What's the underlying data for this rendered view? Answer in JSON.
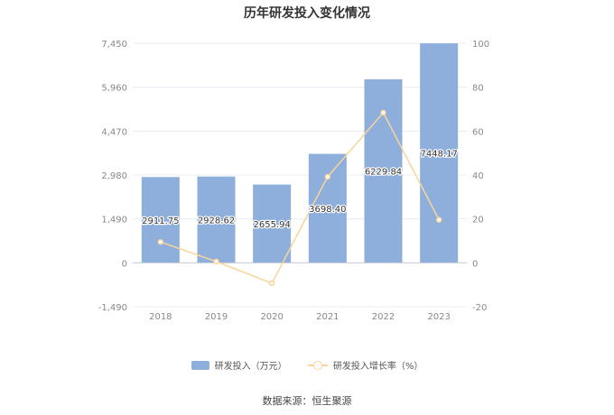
{
  "chart_data": {
    "type": "bar",
    "title": "历年研发投入变化情况",
    "categories": [
      "2018",
      "2019",
      "2020",
      "2021",
      "2022",
      "2023"
    ],
    "series": [
      {
        "name": "研发投入（万元）",
        "type": "bar",
        "axis": "left",
        "values": [
          2911.75,
          2928.62,
          2655.94,
          3698.4,
          6229.84,
          7448.17
        ],
        "labels": [
          "2911.75",
          "2928.62",
          "2655.94",
          "3698.40",
          "6229.84",
          "7448.17"
        ]
      },
      {
        "name": "研发投入增长率（%）",
        "type": "line",
        "axis": "right",
        "values": [
          9.5,
          0.6,
          -9.3,
          39.2,
          68.4,
          19.6
        ]
      }
    ],
    "y_left": {
      "ticks": [
        "7,450",
        "5,960",
        "4,470",
        "2,980",
        "1,490",
        "0",
        "-1,490"
      ],
      "range": [
        -1490,
        7450
      ]
    },
    "y_right": {
      "ticks": [
        "100",
        "80",
        "60",
        "40",
        "20",
        "0",
        "-20"
      ],
      "range": [
        -20,
        100
      ]
    },
    "grid": true,
    "legend_position": "bottom",
    "colors": {
      "bar": "#8eaedb",
      "line": "#f7d59c",
      "grid": "#e8ecf2",
      "axis_text": "#888888"
    }
  },
  "source_text": "数据来源：恒生聚源"
}
